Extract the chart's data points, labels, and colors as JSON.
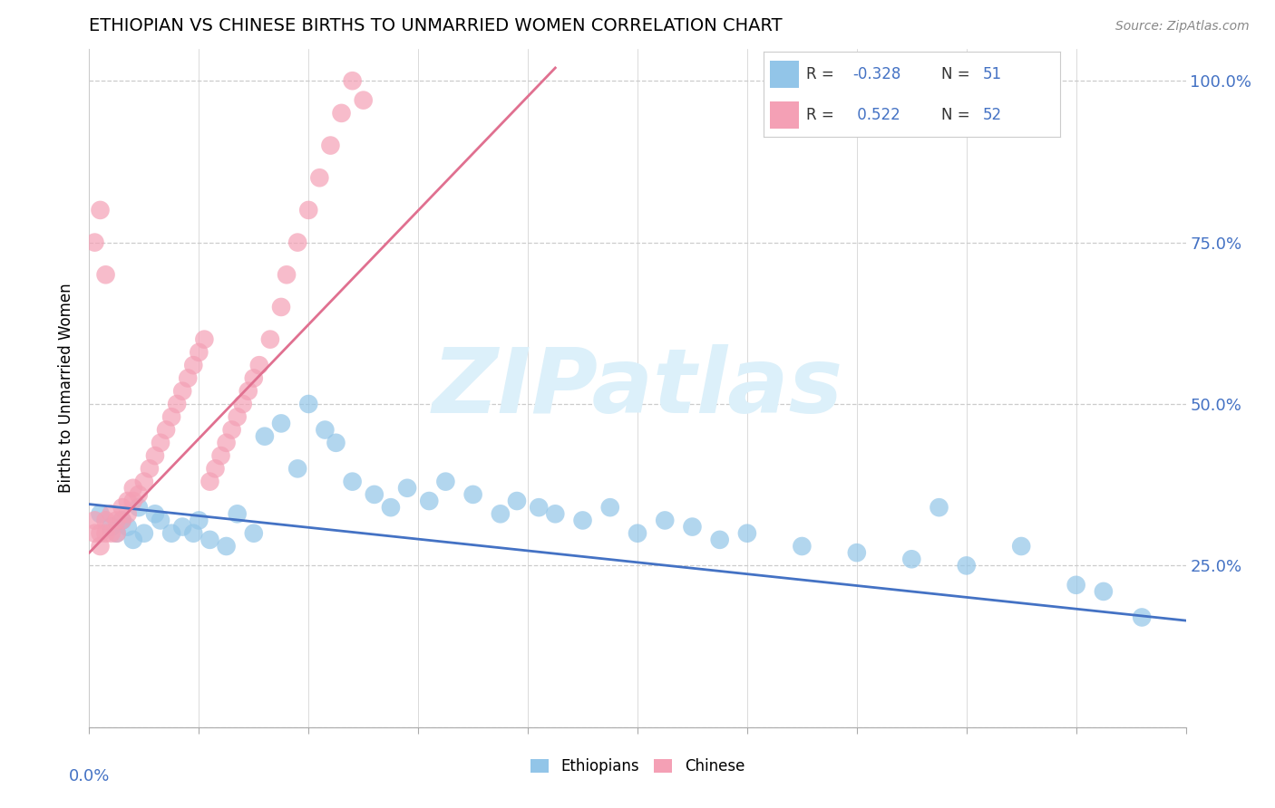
{
  "title": "ETHIOPIAN VS CHINESE BIRTHS TO UNMARRIED WOMEN CORRELATION CHART",
  "source_text": "Source: ZipAtlas.com",
  "ylabel": "Births to Unmarried Women",
  "xlim": [
    0.0,
    0.2
  ],
  "ylim": [
    0.0,
    1.05
  ],
  "ytick_values": [
    0.0,
    0.25,
    0.5,
    0.75,
    1.0
  ],
  "ytick_labels": [
    "",
    "25.0%",
    "50.0%",
    "75.0%",
    "100.0%"
  ],
  "ethiopians_color": "#92C5E8",
  "chinese_color": "#F4A0B5",
  "eth_line_color": "#4472C4",
  "chi_line_color": "#E07090",
  "ethiopians_R": -0.328,
  "ethiopians_N": 51,
  "chinese_R": 0.522,
  "chinese_N": 52,
  "watermark_color": "#DCF0FA",
  "eth_scatter_x": [
    0.002,
    0.004,
    0.005,
    0.006,
    0.007,
    0.008,
    0.009,
    0.01,
    0.012,
    0.013,
    0.015,
    0.017,
    0.019,
    0.02,
    0.022,
    0.025,
    0.027,
    0.03,
    0.032,
    0.035,
    0.038,
    0.04,
    0.043,
    0.045,
    0.048,
    0.052,
    0.055,
    0.058,
    0.062,
    0.065,
    0.07,
    0.075,
    0.078,
    0.082,
    0.085,
    0.09,
    0.095,
    0.1,
    0.105,
    0.11,
    0.115,
    0.12,
    0.13,
    0.14,
    0.15,
    0.155,
    0.16,
    0.17,
    0.18,
    0.185,
    0.192
  ],
  "eth_scatter_y": [
    0.33,
    0.31,
    0.3,
    0.32,
    0.31,
    0.29,
    0.34,
    0.3,
    0.33,
    0.32,
    0.3,
    0.31,
    0.3,
    0.32,
    0.29,
    0.28,
    0.33,
    0.3,
    0.45,
    0.47,
    0.4,
    0.5,
    0.46,
    0.44,
    0.38,
    0.36,
    0.34,
    0.37,
    0.35,
    0.38,
    0.36,
    0.33,
    0.35,
    0.34,
    0.33,
    0.32,
    0.34,
    0.3,
    0.32,
    0.31,
    0.29,
    0.3,
    0.28,
    0.27,
    0.26,
    0.34,
    0.25,
    0.28,
    0.22,
    0.21,
    0.17
  ],
  "chi_scatter_x": [
    0.001,
    0.001,
    0.002,
    0.002,
    0.003,
    0.003,
    0.004,
    0.004,
    0.005,
    0.005,
    0.006,
    0.006,
    0.007,
    0.007,
    0.008,
    0.008,
    0.009,
    0.01,
    0.011,
    0.012,
    0.013,
    0.014,
    0.015,
    0.016,
    0.017,
    0.018,
    0.019,
    0.02,
    0.021,
    0.022,
    0.023,
    0.024,
    0.025,
    0.026,
    0.027,
    0.028,
    0.029,
    0.03,
    0.031,
    0.033,
    0.035,
    0.036,
    0.038,
    0.04,
    0.042,
    0.044,
    0.046,
    0.048,
    0.05,
    0.003,
    0.001,
    0.002
  ],
  "chi_scatter_y": [
    0.3,
    0.32,
    0.28,
    0.3,
    0.3,
    0.32,
    0.3,
    0.33,
    0.3,
    0.32,
    0.32,
    0.34,
    0.33,
    0.35,
    0.35,
    0.37,
    0.36,
    0.38,
    0.4,
    0.42,
    0.44,
    0.46,
    0.48,
    0.5,
    0.52,
    0.54,
    0.56,
    0.58,
    0.6,
    0.38,
    0.4,
    0.42,
    0.44,
    0.46,
    0.48,
    0.5,
    0.52,
    0.54,
    0.56,
    0.6,
    0.65,
    0.7,
    0.75,
    0.8,
    0.85,
    0.9,
    0.95,
    1.0,
    0.97,
    0.7,
    0.75,
    0.8
  ],
  "chi_line_x": [
    0.0,
    0.085
  ],
  "chi_line_y": [
    0.27,
    1.02
  ],
  "eth_line_x": [
    0.0,
    0.2
  ],
  "eth_line_y": [
    0.345,
    0.165
  ]
}
